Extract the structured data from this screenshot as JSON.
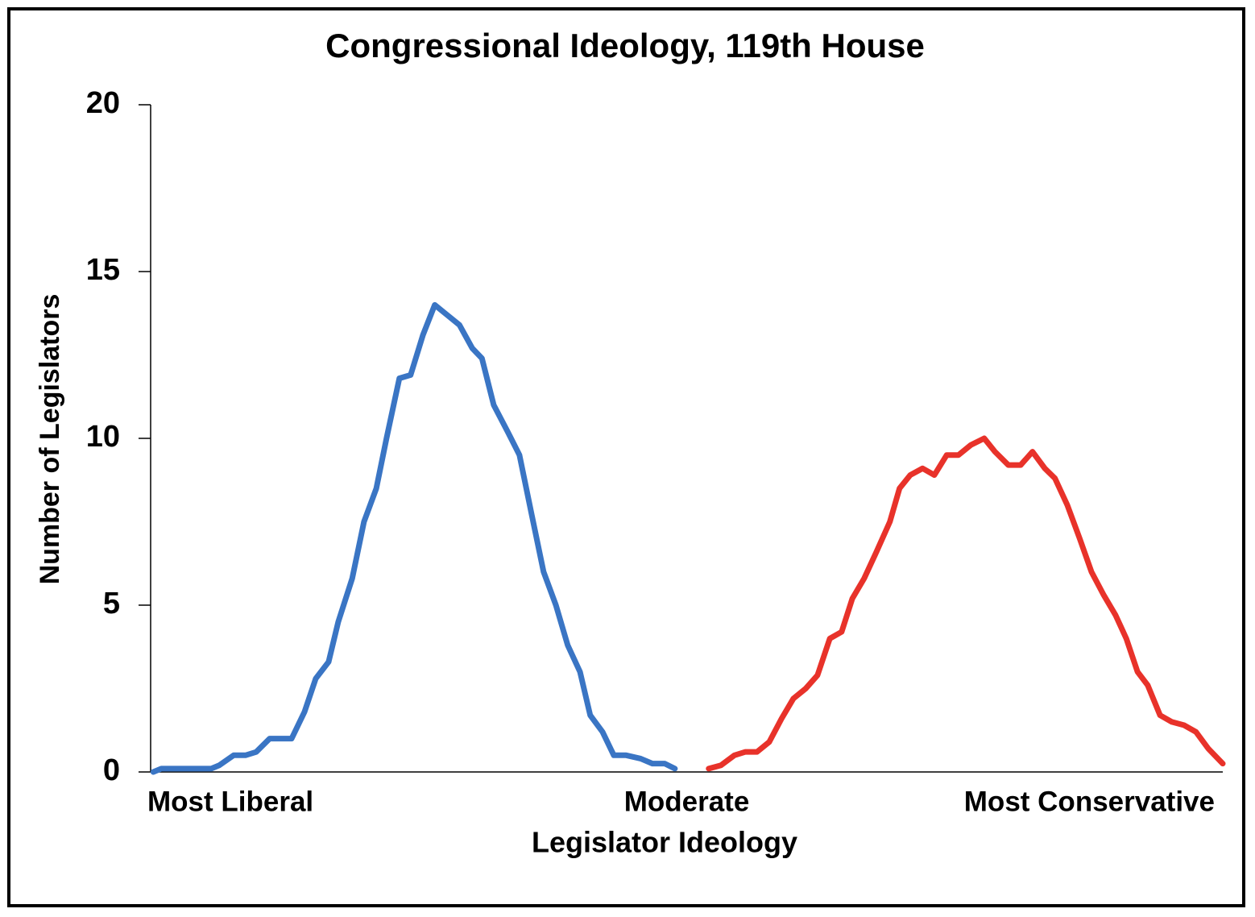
{
  "chart_data": {
    "type": "line",
    "title": "Congressional Ideology, 119th House",
    "x_label": "Legislator Ideology",
    "y_label": "Number of Legislators",
    "xlim": [
      -1,
      1
    ],
    "xticks": [
      {
        "value": -1,
        "label": "Most Liberal"
      },
      {
        "value": 0,
        "label": "Moderate"
      },
      {
        "value": 1,
        "label": "Most Conservative"
      }
    ],
    "ylim": [
      0,
      20
    ],
    "yticks": [
      0,
      5,
      10,
      15,
      20
    ],
    "grid": false,
    "series": [
      {
        "color": "#3a75c4",
        "x": [
          -0.995,
          -0.98,
          -0.887,
          -0.872,
          -0.845,
          -0.823,
          -0.803,
          -0.778,
          -0.737,
          -0.713,
          -0.692,
          -0.668,
          -0.65,
          -0.624,
          -0.602,
          -0.579,
          -0.56,
          -0.536,
          -0.515,
          -0.492,
          -0.47,
          -0.447,
          -0.424,
          -0.4,
          -0.382,
          -0.36,
          -0.334,
          -0.312,
          -0.289,
          -0.267,
          -0.244,
          -0.222,
          -0.199,
          -0.18,
          -0.157,
          -0.136,
          -0.113,
          -0.086,
          -0.064,
          -0.041,
          -0.022
        ],
        "values": [
          0,
          0.1,
          0.1,
          0.2,
          0.5,
          0.5,
          0.6,
          1,
          1,
          1.8,
          2.8,
          3.3,
          4.5,
          5.8,
          7.5,
          8.5,
          10,
          11.8,
          11.9,
          13.1,
          14,
          13.7,
          13.4,
          12.7,
          12.4,
          11,
          10.2,
          9.5,
          7.7,
          6,
          5,
          3.8,
          3,
          1.7,
          1.2,
          0.5,
          0.5,
          0.4,
          0.25,
          0.25,
          0.1
        ]
      },
      {
        "color": "#e8322a",
        "x": [
          0.041,
          0.064,
          0.089,
          0.109,
          0.131,
          0.154,
          0.177,
          0.199,
          0.222,
          0.244,
          0.267,
          0.289,
          0.309,
          0.331,
          0.354,
          0.379,
          0.397,
          0.417,
          0.44,
          0.462,
          0.485,
          0.507,
          0.53,
          0.555,
          0.575,
          0.6,
          0.623,
          0.645,
          0.668,
          0.687,
          0.71,
          0.733,
          0.755,
          0.778,
          0.8,
          0.82,
          0.841,
          0.86,
          0.883,
          0.905,
          0.928,
          0.95,
          0.973,
          1.0
        ],
        "values": [
          0.1,
          0.2,
          0.5,
          0.6,
          0.6,
          0.9,
          1.6,
          2.2,
          2.5,
          2.9,
          4,
          4.2,
          5.2,
          5.8,
          6.6,
          7.5,
          8.5,
          8.9,
          9.1,
          8.9,
          9.5,
          9.5,
          9.8,
          10,
          9.6,
          9.2,
          9.2,
          9.6,
          9.1,
          8.8,
          8,
          7,
          6,
          5.3,
          4.7,
          4,
          3,
          2.6,
          1.7,
          1.5,
          1.4,
          1.2,
          0.7,
          0.25
        ]
      }
    ]
  }
}
